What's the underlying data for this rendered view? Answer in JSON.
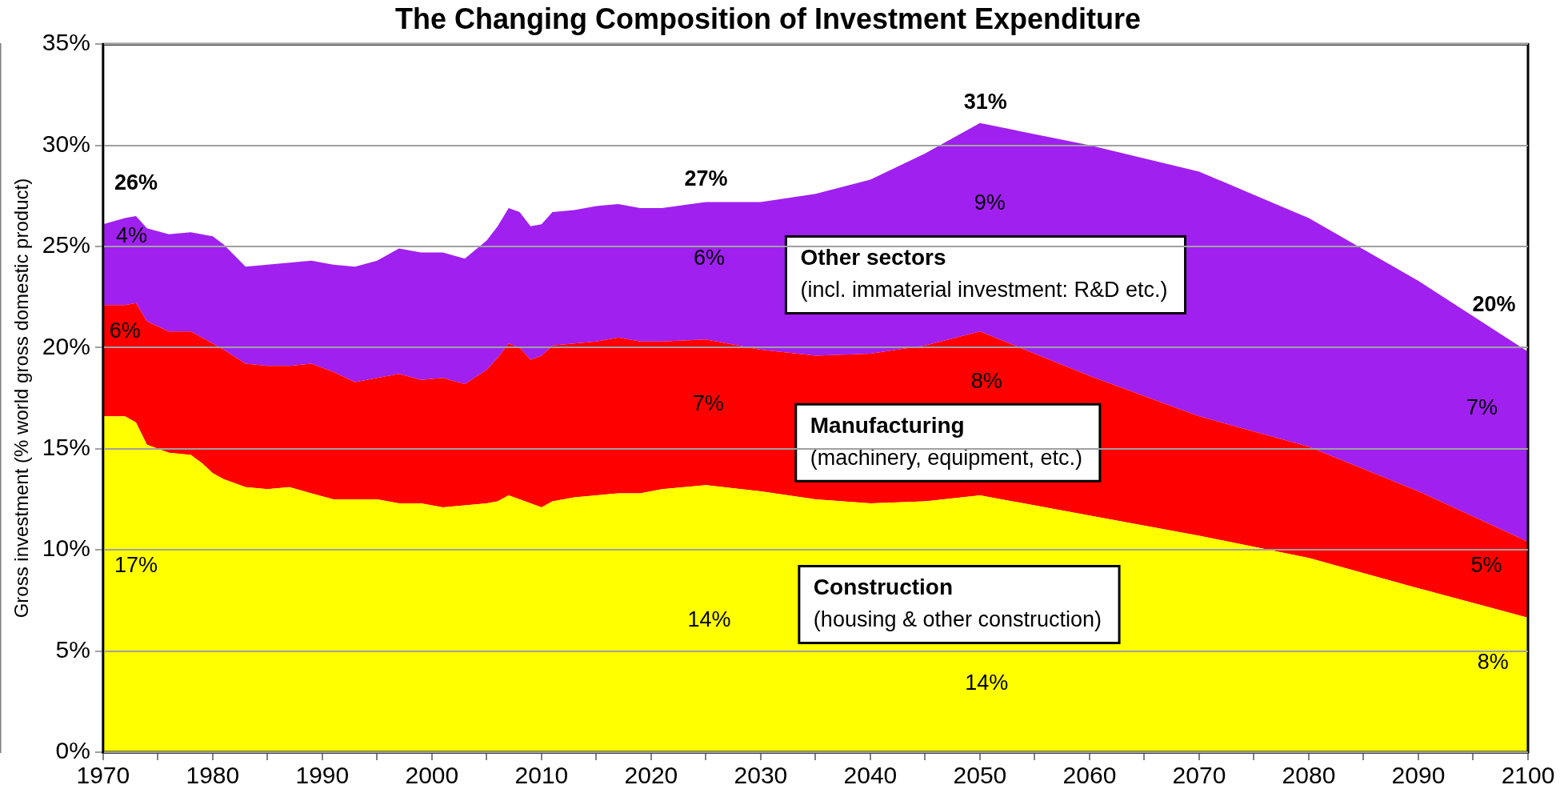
{
  "chart_data": {
    "type": "area",
    "title": "The Changing Composition of Investment Expenditure",
    "ylabel": "Gross investment (% world gross domestic product)",
    "stacked": true,
    "x": [
      1970,
      1972,
      1973,
      1974,
      1976,
      1978,
      1979,
      1980,
      1981,
      1983,
      1985,
      1987,
      1989,
      1991,
      1993,
      1995,
      1997,
      1999,
      2001,
      2003,
      2005,
      2006,
      2007,
      2008,
      2009,
      2010,
      2011,
      2013,
      2015,
      2017,
      2019,
      2021,
      2025,
      2030,
      2035,
      2040,
      2045,
      2050,
      2060,
      2070,
      2080,
      2090,
      2100
    ],
    "series": [
      {
        "name": "Construction (housing & other construction)",
        "color": "#ffff00",
        "values": [
          16.6,
          16.6,
          16.3,
          15.2,
          14.8,
          14.7,
          14.3,
          13.8,
          13.5,
          13.1,
          13.0,
          13.1,
          12.8,
          12.5,
          12.5,
          12.5,
          12.3,
          12.3,
          12.1,
          12.2,
          12.3,
          12.4,
          12.7,
          12.5,
          12.3,
          12.1,
          12.4,
          12.6,
          12.7,
          12.8,
          12.8,
          13.0,
          13.2,
          12.9,
          12.5,
          12.3,
          12.4,
          12.7,
          11.7,
          10.7,
          9.6,
          8.1,
          6.65
        ]
      },
      {
        "name": "Manufacturing (machinery, equipment, etc.)",
        "color": "#ff0000",
        "values": [
          5.5,
          5.5,
          5.9,
          6.1,
          6.0,
          6.1,
          6.2,
          6.4,
          6.4,
          6.1,
          6.1,
          6.0,
          6.4,
          6.3,
          5.8,
          6.0,
          6.4,
          6.1,
          6.4,
          6.0,
          6.6,
          7.1,
          7.5,
          7.5,
          7.1,
          7.5,
          7.7,
          7.6,
          7.6,
          7.7,
          7.5,
          7.3,
          7.2,
          7.0,
          7.1,
          7.4,
          7.7,
          8.1,
          6.9,
          5.9,
          5.5,
          4.8,
          3.75
        ]
      },
      {
        "name": "Other sectors (incl. immaterial investment: R&D etc.)",
        "color": "#a020f0",
        "values": [
          4.0,
          4.3,
          4.3,
          4.6,
          4.8,
          4.9,
          5.1,
          5.3,
          5.2,
          4.8,
          5.0,
          5.1,
          5.1,
          5.3,
          5.7,
          5.8,
          6.2,
          6.3,
          6.2,
          6.2,
          6.4,
          6.5,
          6.7,
          6.7,
          6.6,
          6.5,
          6.6,
          6.6,
          6.7,
          6.6,
          6.6,
          6.6,
          6.8,
          7.3,
          8.0,
          8.6,
          9.5,
          10.3,
          11.4,
          12.1,
          11.3,
          10.4,
          9.4
        ]
      }
    ],
    "xlim": [
      1970,
      2100
    ],
    "xticks": [
      1970,
      {
        "value": 1975,
        "label": null
      },
      1980,
      {
        "value": 1985,
        "label": null
      },
      1990,
      {
        "value": 1995,
        "label": null
      },
      2000,
      {
        "value": 2005,
        "label": null
      },
      2010,
      {
        "value": 2015,
        "label": null
      },
      2020,
      {
        "value": 2025,
        "label": null
      },
      2030,
      {
        "value": 2035,
        "label": null
      },
      2040,
      {
        "value": 2045,
        "label": null
      },
      2050,
      {
        "value": 2055,
        "label": null
      },
      2060,
      {
        "value": 2065,
        "label": null
      },
      2070,
      {
        "value": 2075,
        "label": null
      },
      2080,
      {
        "value": 2085,
        "label": null
      },
      2090,
      {
        "value": 2095,
        "label": null
      },
      2100
    ],
    "ylim": [
      0,
      35
    ],
    "yticks": [
      {
        "value": 0,
        "label": "0%"
      },
      {
        "value": 5,
        "label": "5%"
      },
      {
        "value": 10,
        "label": "10%"
      },
      {
        "value": 15,
        "label": "15%"
      },
      {
        "value": 20,
        "label": "20%"
      },
      {
        "value": 25,
        "label": "25%"
      },
      {
        "value": 30,
        "label": "30%"
      },
      {
        "value": 35,
        "label": "35%"
      }
    ],
    "grid": "y",
    "legend": false,
    "annotations": [
      "26%",
      "4%",
      "6%",
      "17%",
      "27%",
      "6%",
      "7%",
      "14%",
      "31%",
      "9%",
      "8%",
      "14%",
      "20%",
      "7%",
      "5%",
      "8%"
    ]
  }
}
